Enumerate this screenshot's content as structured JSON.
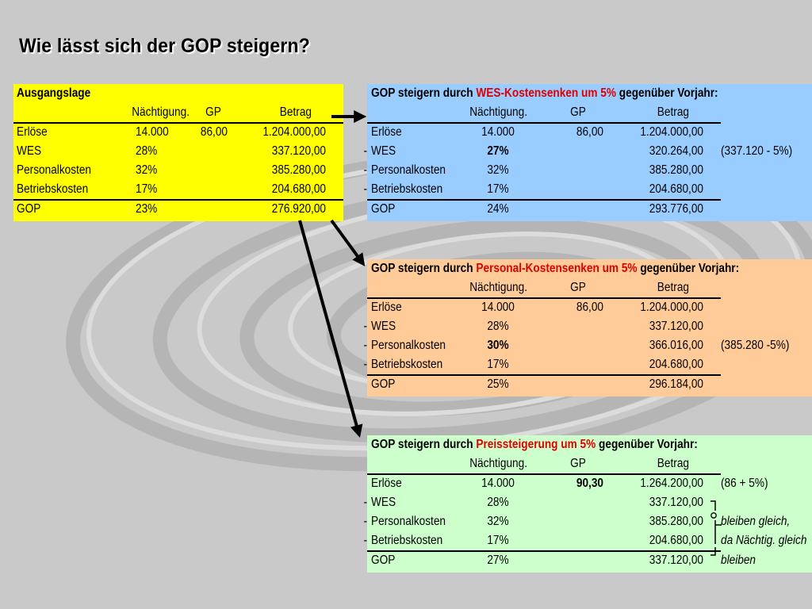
{
  "title": "Wie lässt sich der GOP steigern?",
  "col_headers": {
    "naechtigung": "Nächtigung.",
    "gp": "GP",
    "betrag": "Betrag"
  },
  "ausgangslage": {
    "title": "Ausgangslage",
    "color": "#ffff00",
    "rows": [
      {
        "label": "Erlöse",
        "pct": "14.000",
        "gp": "86,00",
        "betrag": "1.204.000,00"
      },
      {
        "label": "WES",
        "pct": "28%",
        "gp": "",
        "betrag": "337.120,00"
      },
      {
        "label": "Personalkosten",
        "pct": "32%",
        "gp": "",
        "betrag": "385.280,00"
      },
      {
        "label": "Betriebskosten",
        "pct": "17%",
        "gp": "",
        "betrag": "204.680,00"
      },
      {
        "label": "GOP",
        "pct": "23%",
        "gp": "",
        "betrag": "276.920,00"
      }
    ]
  },
  "wes_panel": {
    "title_pre": "GOP steigern durch ",
    "title_red": "WES-Kostensenken um 5%",
    "title_post": " gegenüber Vorjahr:",
    "color": "#99ccff",
    "rows": [
      {
        "sign": "",
        "label": "Erlöse",
        "pct": "14.000",
        "gp": "86,00",
        "betrag": "1.204.000,00",
        "note": ""
      },
      {
        "sign": "-",
        "label": "WES",
        "pct": "27%",
        "gp": "",
        "betrag": "320.264,00",
        "note": "(337.120 - 5%)"
      },
      {
        "sign": "-",
        "label": "Personalkosten",
        "pct": "32%",
        "gp": "",
        "betrag": "385.280,00",
        "note": ""
      },
      {
        "sign": "-",
        "label": "Betriebskosten",
        "pct": "17%",
        "gp": "",
        "betrag": "204.680,00",
        "note": ""
      },
      {
        "sign": "",
        "label": "GOP",
        "pct": "24%",
        "gp": "",
        "betrag": "293.776,00",
        "note": ""
      }
    ]
  },
  "personal_panel": {
    "title_pre": "GOP steigern durch ",
    "title_red": "Personal-Kostensenken um 5%",
    "title_post": " gegenüber Vorjahr:",
    "color": "#ffcc99",
    "rows": [
      {
        "sign": "",
        "label": "Erlöse",
        "pct": "14.000",
        "gp": "86,00",
        "betrag": "1.204.000,00",
        "note": ""
      },
      {
        "sign": "-",
        "label": "WES",
        "pct": "28%",
        "gp": "",
        "betrag": "337.120,00",
        "note": ""
      },
      {
        "sign": "-",
        "label": "Personalkosten",
        "pct": "30%",
        "gp": "",
        "betrag": "366.016,00",
        "note": "(385.280 -5%)"
      },
      {
        "sign": "-",
        "label": "Betriebskosten",
        "pct": "17%",
        "gp": "",
        "betrag": "204.680,00",
        "note": ""
      },
      {
        "sign": "",
        "label": "GOP",
        "pct": "25%",
        "gp": "",
        "betrag": "296.184,00",
        "note": ""
      }
    ]
  },
  "preis_panel": {
    "title_pre": "GOP steigern durch  ",
    "title_red": "Preissteigerung um 5%",
    "title_post": " gegenüber Vorjahr:",
    "color": "#ccffcc",
    "rows": [
      {
        "sign": "",
        "label": "Erlöse",
        "pct": "14.000",
        "gp": "90,30",
        "betrag": "1.264.200,00",
        "note": "(86 + 5%)"
      },
      {
        "sign": "-",
        "label": "WES",
        "pct": "28%",
        "gp": "",
        "betrag": "337.120,00",
        "note": ""
      },
      {
        "sign": "-",
        "label": "Personalkosten",
        "pct": "32%",
        "gp": "",
        "betrag": "385.280,00",
        "note": "bleiben gleich,"
      },
      {
        "sign": "-",
        "label": "Betriebskosten",
        "pct": "17%",
        "gp": "",
        "betrag": "204.680,00",
        "note": "da Nächtig. gleich"
      },
      {
        "sign": "",
        "label": "GOP",
        "pct": "27%",
        "gp": "",
        "betrag": "337.120,00",
        "note": "bleiben"
      }
    ]
  }
}
